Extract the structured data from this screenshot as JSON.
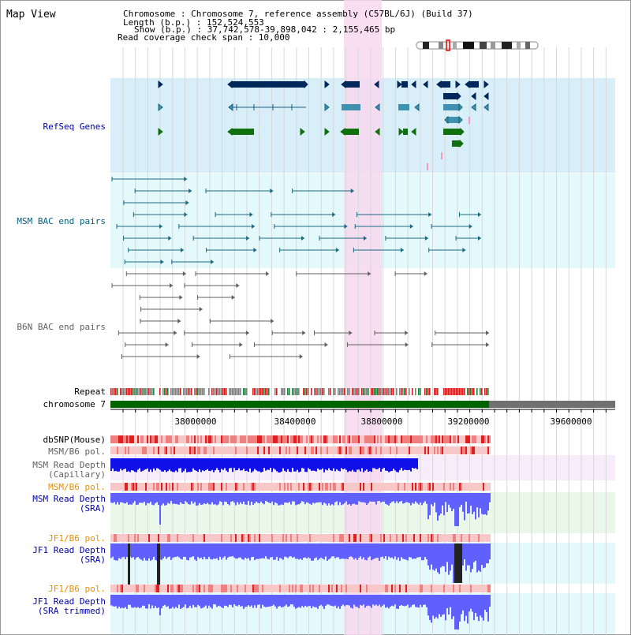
{
  "app_title": "Map View",
  "info": {
    "chromosome": "Chromosome      : Chromosome 7, reference assembly (C57BL/6J) (Build 37)",
    "length": "Length (b.p.) : 152,524,553",
    "show": "Show (b.p.) : 37,742,578-39,898,042 : 2,155,465 bp",
    "coverage": "Read coverage check span : 10,000"
  },
  "tracks": {
    "refseq": "RefSeq Genes",
    "msm_bac": "MSM BAC end pairs",
    "b6n_bac": "B6N BAC end pairs",
    "repeat": "Repeat",
    "chromosome": "chromosome 7",
    "dbsnp": "dbSNP(Mouse)",
    "msm_b6_pol": "MSM/B6 pol.",
    "msm_depth_cap_1": "MSM Read Depth",
    "msm_depth_cap_2": "(Capillary)",
    "msm_b6_pol_2": "MSM/B6 pol.",
    "msm_depth_sra_1": "MSM Read Depth",
    "msm_depth_sra_2": "(SRA)",
    "jf1_b6_pol": "JF1/B6 pol.",
    "jf1_depth_sra_1": "JF1 Read Depth",
    "jf1_depth_sra_2": "(SRA)",
    "jf1_b6_pol_2": "JF1/B6 pol.",
    "jf1_depth_trim_1": "JF1 Read Depth",
    "jf1_depth_trim_2": "(SRA trimmed)"
  },
  "ruler": {
    "ticks": [
      "38000000",
      "38400000",
      "38800000",
      "39200000",
      "39600000"
    ]
  },
  "colors": {
    "refseq_bg": "#d8eef8",
    "bac_bg": "#e4f9fb",
    "highlight": "#f8d8f0",
    "refseq_label": "#0000aa",
    "msm_label": "#006080",
    "b6n_label": "#606060",
    "orange_label": "#e89000",
    "depth_blue": "#6060ff",
    "depth_dark": "#1010e8",
    "gene_navy": "#00285a",
    "gene_teal": "#4090b0",
    "gene_green": "#107010",
    "chrom_green": "#006400",
    "chrom_gray": "#707070"
  }
}
